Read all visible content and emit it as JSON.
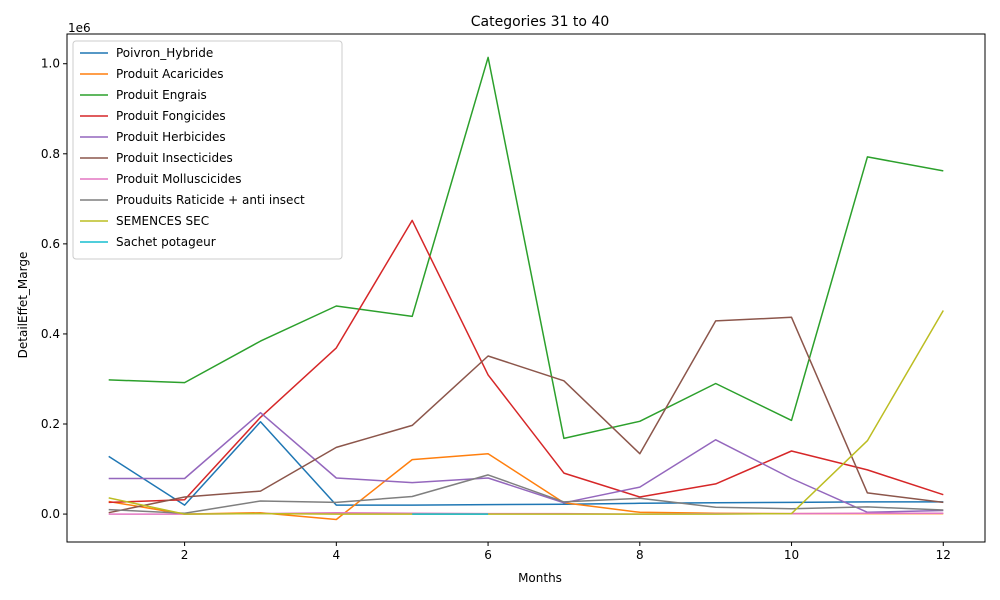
{
  "chart_data": {
    "type": "line",
    "title": "Categories 31 to 40",
    "xlabel": "Months",
    "ylabel": "DetailEffet_Marge",
    "y_offset_label": "1e6",
    "xlim": [
      0.45,
      12.55
    ],
    "ylim": [
      -62000,
      1066000
    ],
    "x_ticks": [
      2,
      4,
      6,
      8,
      10,
      12
    ],
    "y_ticks": [
      0,
      200000,
      400000,
      600000,
      800000,
      1000000
    ],
    "y_tick_labels": [
      "0.0",
      "0.2",
      "0.4",
      "0.6",
      "0.8",
      "1.0"
    ],
    "grid": false,
    "legend_position": "upper-left",
    "series": [
      {
        "name": "Poivron_Hybride",
        "color": "#1f77b4",
        "x": [
          1,
          2,
          3,
          4,
          5,
          6,
          7,
          8,
          9,
          10,
          11,
          12
        ],
        "y": [
          128000,
          20000,
          205000,
          20000,
          20000,
          21000,
          22000,
          24000,
          25000,
          26000,
          27000,
          27000
        ]
      },
      {
        "name": "Produit Acaricides",
        "color": "#ff7f0e",
        "x": [
          1,
          2,
          3,
          4,
          5,
          6,
          7,
          8,
          9,
          10,
          11,
          12
        ],
        "y": [
          28000,
          0,
          3000,
          -12000,
          121000,
          134000,
          25000,
          4000,
          2000,
          1000,
          1000,
          1000
        ]
      },
      {
        "name": "Produit Engrais",
        "color": "#2ca02c",
        "x": [
          1,
          2,
          3,
          4,
          5,
          6,
          7,
          8,
          9,
          10,
          11,
          12
        ],
        "y": [
          298000,
          292000,
          384000,
          462000,
          439000,
          1014000,
          168000,
          206000,
          290000,
          208000,
          793000,
          762000
        ]
      },
      {
        "name": "Produit Fongicides",
        "color": "#d62728",
        "x": [
          1,
          2,
          3,
          4,
          5,
          6,
          7,
          8,
          9,
          10,
          11,
          12
        ],
        "y": [
          26000,
          32000,
          215000,
          369000,
          652000,
          309000,
          91000,
          38000,
          67000,
          140000,
          98000,
          43000
        ]
      },
      {
        "name": "Produit Herbicides",
        "color": "#9467bd",
        "x": [
          1,
          2,
          3,
          4,
          5,
          6,
          7,
          8,
          9,
          10,
          11,
          12
        ],
        "y": [
          79000,
          79000,
          225000,
          80000,
          70000,
          80000,
          25000,
          60000,
          165000,
          79000,
          4000,
          8000
        ]
      },
      {
        "name": "Produit Insecticides",
        "color": "#8c564b",
        "x": [
          1,
          2,
          3,
          4,
          5,
          6,
          7,
          8,
          9,
          10,
          11,
          12
        ],
        "y": [
          3000,
          38000,
          51000,
          148000,
          197000,
          351000,
          296000,
          134000,
          429000,
          437000,
          47000,
          26000
        ]
      },
      {
        "name": "Produit Molluscicides",
        "color": "#e377c2",
        "x": [
          1,
          2,
          3,
          4,
          5,
          6,
          7,
          8,
          9,
          10,
          11,
          12
        ],
        "y": [
          0,
          0,
          1000,
          3000,
          2000,
          1000,
          1000,
          0,
          1000,
          1000,
          2000,
          2000
        ]
      },
      {
        "name": "Prouduits Raticide + anti insect",
        "color": "#7f7f7f",
        "x": [
          1,
          2,
          3,
          4,
          5,
          6,
          7,
          8,
          9,
          10,
          11,
          12
        ],
        "y": [
          10000,
          2000,
          29000,
          26000,
          39000,
          87000,
          27000,
          35000,
          15000,
          12000,
          16000,
          9000
        ]
      },
      {
        "name": "SEMENCES SEC",
        "color": "#bcbd22",
        "x": [
          1,
          2,
          3,
          4,
          5,
          6,
          7,
          8,
          9,
          10,
          11,
          12
        ],
        "y": [
          36000,
          0,
          1000,
          0,
          0,
          0,
          0,
          0,
          0,
          1000,
          163000,
          452000
        ]
      },
      {
        "name": "Sachet potageur",
        "color": "#17becf",
        "x": [
          5,
          6
        ],
        "y": [
          0,
          0
        ]
      }
    ]
  }
}
